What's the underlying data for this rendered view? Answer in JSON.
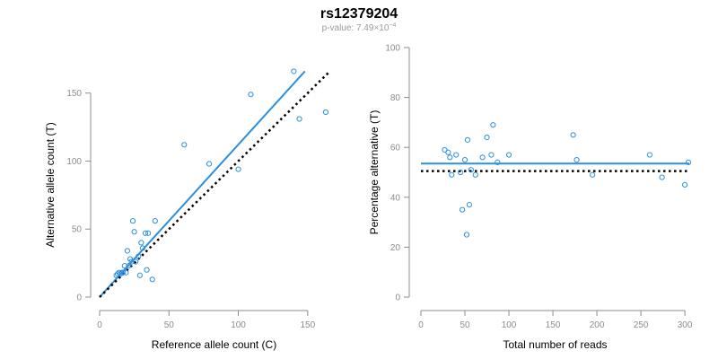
{
  "title": "rs12379204",
  "subtitle": {
    "prefix": "p-value: 7.49",
    "times": "×",
    "base": "10",
    "exponent": "−4"
  },
  "colors": {
    "points": "#2b8fe0",
    "fit_line": "#2b8fe0",
    "reference_line": "#000000",
    "axis": "#8c8c8c"
  },
  "chart_data": [
    {
      "type": "scatter",
      "title": "",
      "xlabel": "Reference allele count (C)",
      "ylabel": "Alternative allele count (T)",
      "xlim": [
        0,
        165
      ],
      "ylim": [
        0,
        165
      ],
      "xticks": [
        0,
        50,
        100,
        150
      ],
      "yticks": [
        0,
        50,
        100,
        150
      ],
      "grid": false,
      "series": [
        {
          "kind": "points",
          "x": [
            12,
            13,
            14,
            15,
            16,
            17,
            18,
            19,
            20,
            21,
            22,
            23,
            24,
            25,
            26,
            28,
            29,
            30,
            31,
            33,
            34,
            35,
            38,
            40,
            61,
            79,
            100,
            109,
            140,
            144,
            163
          ],
          "y": [
            16,
            17,
            18,
            17,
            18,
            18,
            23,
            18,
            34,
            23,
            28,
            26,
            56,
            48,
            26,
            30,
            16,
            40,
            36,
            47,
            20,
            47,
            13,
            56,
            112,
            98,
            94,
            149,
            166,
            131,
            136
          ]
        },
        {
          "kind": "line",
          "style": "solid",
          "x": [
            0,
            148
          ],
          "y": [
            0,
            166
          ]
        },
        {
          "kind": "line",
          "style": "dotted",
          "x": [
            0,
            165
          ],
          "y": [
            0,
            165
          ]
        }
      ]
    },
    {
      "type": "scatter",
      "title": "",
      "xlabel": "Total number of reads",
      "ylabel": "Percentage alternative (T)",
      "xlim": [
        0,
        305
      ],
      "ylim": [
        0,
        100
      ],
      "xticks": [
        0,
        50,
        100,
        150,
        200,
        250,
        300
      ],
      "yticks": [
        0,
        20,
        40,
        60,
        80,
        100
      ],
      "grid": false,
      "series": [
        {
          "kind": "points",
          "x": [
            27,
            31,
            33,
            35,
            40,
            45,
            47,
            50,
            52,
            53,
            55,
            57,
            62,
            70,
            75,
            80,
            82,
            87,
            100,
            173,
            177,
            195,
            260,
            274,
            300,
            304
          ],
          "y": [
            59,
            58,
            56,
            49,
            57,
            50,
            35,
            55,
            25,
            63,
            37,
            51,
            49,
            56,
            64,
            57,
            69,
            54,
            57,
            65,
            55,
            49,
            57,
            48,
            45,
            54
          ]
        },
        {
          "kind": "line",
          "style": "solid",
          "x": [
            0,
            305
          ],
          "y": [
            53.5,
            53.5
          ]
        },
        {
          "kind": "line",
          "style": "dotted",
          "x": [
            0,
            305
          ],
          "y": [
            50.5,
            50.5
          ]
        }
      ]
    }
  ]
}
